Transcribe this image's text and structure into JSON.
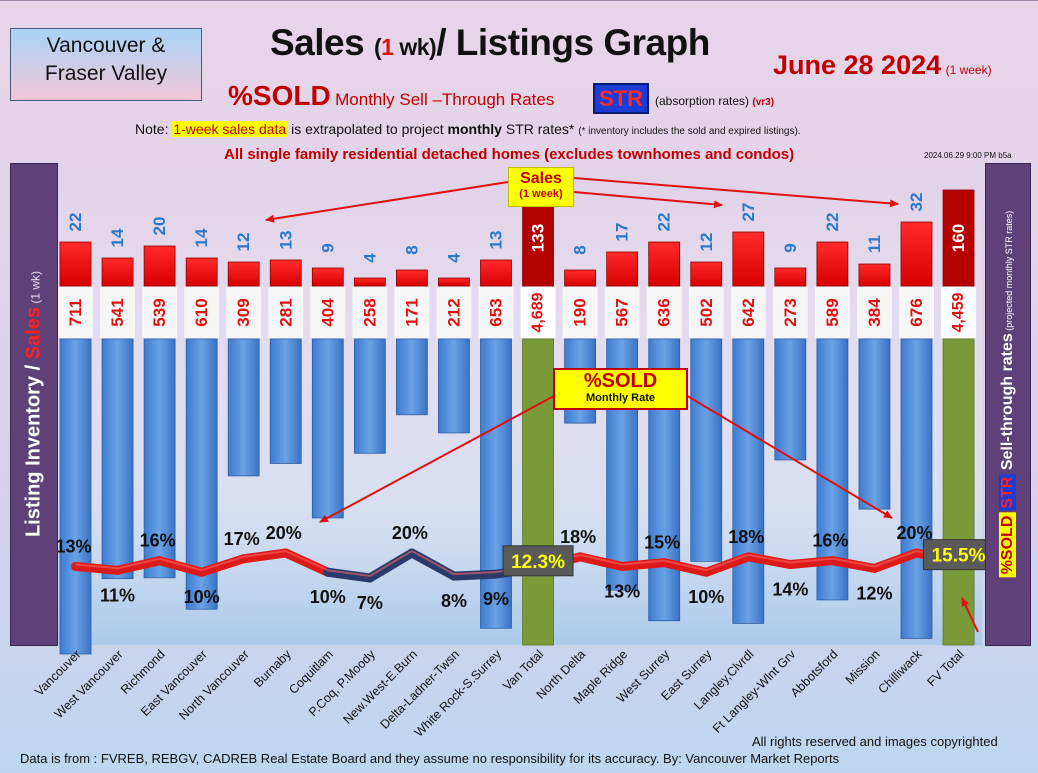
{
  "header": {
    "region_line1": "Vancouver &",
    "region_line2": "Fraser Valley",
    "title_part1": "Sales",
    "title_paren_open": "(",
    "title_num": "1",
    "title_paren_rest": " wk)",
    "title_part2": "/ Listings Graph",
    "date": "June 28  2024",
    "date_note": "(1 week)",
    "subtitle_main": "%SOLD",
    "subtitle_rest": "Monthly Sell –Through Rates",
    "str_badge": "STR",
    "subtitle_note": "(absorption rates)",
    "subtitle_version": "(vr3)",
    "note_prefix": "Note: ",
    "note_highlight": "1-week sales data",
    "note_mid": " is extrapolated to project ",
    "note_bold": "monthly",
    "note_rest": " STR rates* ",
    "note_small": "(* inventory includes the sold and expired listings).",
    "scope": "All single family residential detached homes (excludes townhomes and condos)",
    "timestamp": "2024.06.29  9:00 PM b5a"
  },
  "side_labels": {
    "left_main": "Listing Inventory / ",
    "left_red": "Sales",
    "left_small": " (1 wk)",
    "right_pct": "%SOLD",
    "right_str": "STR",
    "right_main": " Sell-through rates",
    "right_small": " (projected monthly STR rates)"
  },
  "callouts": {
    "sales_title": "Sales",
    "sales_sub": "(1 week)",
    "sold_title": "%SOLD",
    "sold_sub": "Monthly Rate"
  },
  "footer": {
    "source": "Data is from : FVREB, REBGV, CADREB Real Estate Board and they assume no responsibility for its accuracy. By: Vancouver Market Reports",
    "rights": "All rights reserved and  images copyrighted"
  },
  "colors": {
    "bg_top": "#e6d2e6",
    "bg_bottom": "#c2d8ec",
    "sales_bar": "#ee1111",
    "listing_bar": "#4a86d4",
    "total_bar": "#7a9a3a",
    "total_sales_bar": "#b00000",
    "line": "#dd1a1a",
    "line_low": "#2a3a6a",
    "side_panel": "#5e3f78",
    "title_red": "#c00000",
    "sales_label": "#2a78c8"
  },
  "chart_data": {
    "type": "bar",
    "categories": [
      "Vancouver",
      "West Vancouver",
      "Richmond",
      "East Vancouver",
      "North Vancouver",
      "Burnaby",
      "Coquitlam",
      "P.Coq, P.Moody",
      "New.West-E.Burn",
      "Delta-Ladner-Twsn",
      "White Rock-S.Surrey",
      "Van Total",
      "North Delta",
      "Maple Ridge",
      "West Surrey",
      "East Surrey",
      "Langley,Clvrdl",
      "Ft Langley-Wlnt Grv",
      "Abbotsford",
      "Mission",
      "Chilliwack",
      "FV Total"
    ],
    "series": [
      {
        "name": "Sales",
        "values": [
          22,
          14,
          20,
          14,
          12,
          13,
          9,
          4,
          8,
          4,
          13,
          133,
          8,
          17,
          22,
          12,
          27,
          9,
          22,
          11,
          32,
          160
        ],
        "labels": [
          "22",
          "14",
          "20",
          "14",
          "12",
          "13",
          "9",
          "4",
          "8",
          "4",
          "13",
          "133",
          "8",
          "17",
          "22",
          "12",
          "27",
          "9",
          "22",
          "11",
          "32",
          "160"
        ]
      },
      {
        "name": "Listing Inventory",
        "values": [
          711,
          541,
          539,
          610,
          309,
          281,
          404,
          258,
          171,
          212,
          653,
          4689,
          190,
          567,
          636,
          502,
          642,
          273,
          589,
          384,
          676,
          4459
        ],
        "labels": [
          "711",
          "541",
          "539",
          "610",
          "309",
          "281",
          "404",
          "258",
          "171",
          "212",
          "653",
          "4,689",
          "190",
          "567",
          "636",
          "502",
          "642",
          "273",
          "589",
          "384",
          "676",
          "4,459"
        ]
      },
      {
        "name": "%SOLD",
        "values": [
          13,
          11,
          16,
          10,
          17,
          20,
          10,
          7,
          20,
          8,
          9,
          12.3,
          18,
          13,
          15,
          10,
          18,
          14,
          16,
          12,
          20,
          15.5
        ],
        "labels": [
          "13%",
          "11%",
          "16%",
          "10%",
          "17%",
          "20%",
          "10%",
          "7%",
          "20%",
          "8%",
          "9%",
          "12.3%",
          "18%",
          "13%",
          "15%",
          "10%",
          "18%",
          "14%",
          "16%",
          "12%",
          "20%",
          "15.5%"
        ]
      }
    ],
    "totals_index": [
      11,
      21
    ],
    "title": "Sales (1 wk)/ Listings Graph"
  }
}
